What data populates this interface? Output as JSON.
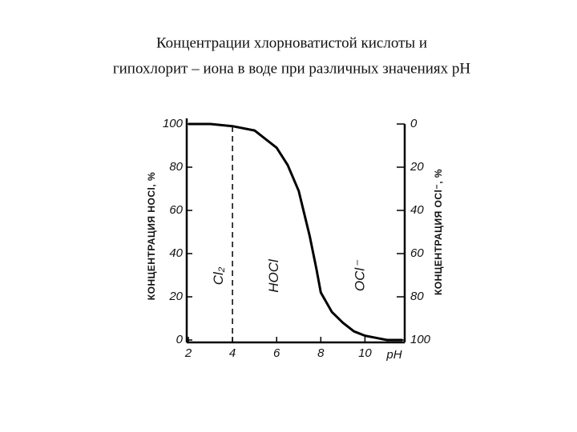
{
  "chart_data": {
    "type": "line",
    "title_lines": [
      "Концентрации хлорноватистой кислоты и",
      "гипохлорит – иона в воде при различных значениях pH"
    ],
    "y_label": "КОНЦЕНТРАЦИЯ HOCl, %",
    "y2_label": "КОНЦЕНТРАЦИЯ OCl⁻, %",
    "x_label": "pH",
    "x": [
      2,
      3,
      4,
      5,
      6,
      6.5,
      7,
      7.5,
      7.8,
      8,
      8.5,
      9,
      9.5,
      10,
      10.5,
      11,
      11.7
    ],
    "series": [
      {
        "name": "HOCl",
        "color": "#000000",
        "values": [
          100,
          100,
          99,
          97,
          89,
          81,
          69,
          48,
          33,
          22,
          13,
          8,
          4,
          2,
          1,
          0,
          0
        ]
      }
    ],
    "xlim": [
      2,
      11.8
    ],
    "xticks": [
      2,
      4,
      6,
      8,
      10
    ],
    "ylim": [
      0,
      100
    ],
    "yticks": [
      0,
      20,
      40,
      60,
      80,
      100
    ],
    "y2lim": [
      100,
      0
    ],
    "y2ticks": [
      0,
      20,
      40,
      60,
      80,
      100
    ],
    "vlines": [
      4
    ],
    "regions": [
      {
        "label": "Cl₂",
        "x": 3.4
      },
      {
        "label": "HOCl",
        "x": 5.9
      },
      {
        "label": "OCl⁻",
        "x": 9.8
      }
    ]
  }
}
